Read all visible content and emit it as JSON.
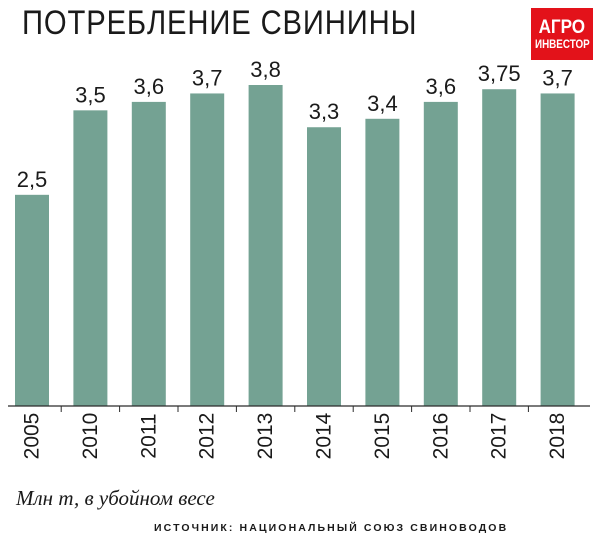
{
  "header": {
    "title": "ПОТРЕБЛЕНИЕ СВИНИНЫ",
    "logo_line1": "АГРО",
    "logo_line2": "ИНВЕСТОР"
  },
  "footer": {
    "unit_note": "Млн т, в убойном весе",
    "source": "ИСТОЧНИК: НАЦИОНАЛЬНЫЙ СОЮЗ СВИНОВОДОВ"
  },
  "colors": {
    "bar": "#74a293",
    "axis": "#2b2b2b",
    "logo_bg": "#e3121a",
    "text": "#1a1a1a"
  },
  "chart_data": {
    "type": "bar",
    "title": "ПОТРЕБЛЕНИЕ СВИНИНЫ",
    "ylabel": "",
    "xlabel": "",
    "grid": false,
    "categories": [
      "2005",
      "2010",
      "2011",
      "2012",
      "2013",
      "2014",
      "2015",
      "2016",
      "2017",
      "2018"
    ],
    "values": [
      2.5,
      3.5,
      3.6,
      3.7,
      3.8,
      3.3,
      3.4,
      3.6,
      3.75,
      3.7
    ],
    "value_labels": [
      "2,5",
      "3,5",
      "3,6",
      "3,7",
      "3,8",
      "3,3",
      "3,4",
      "3,6",
      "3,75",
      "3,7"
    ],
    "ylim": [
      0,
      3.8
    ]
  }
}
